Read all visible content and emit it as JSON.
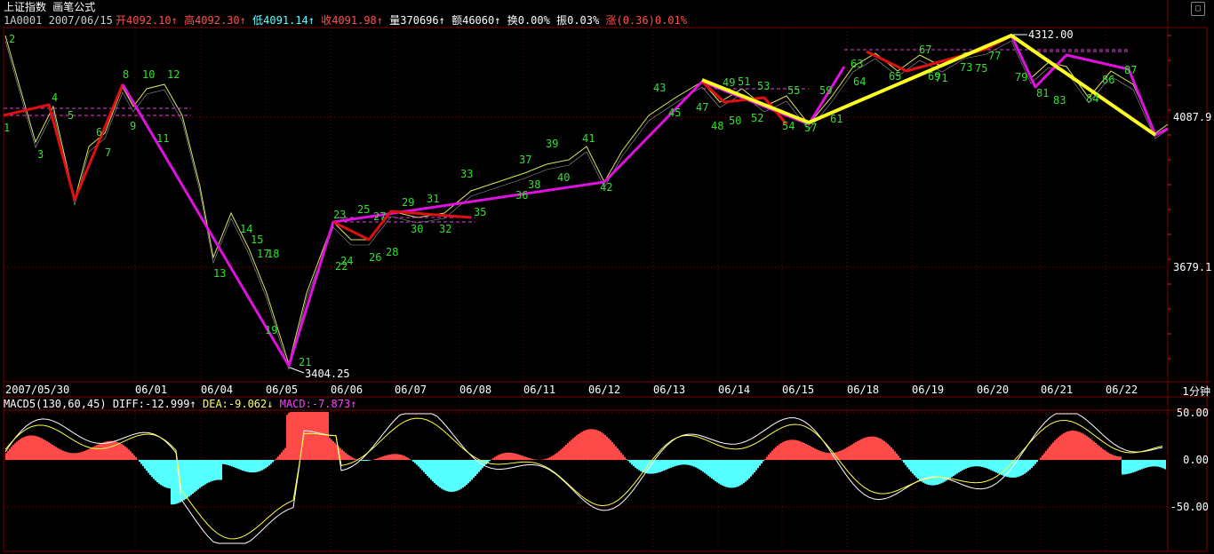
{
  "header": {
    "title": "上证指数  画笔公式",
    "symbol": "1A0001",
    "date": "2007/06/15",
    "open_label": "开",
    "open_value": "4092.10",
    "high_label": "高",
    "high_value": "4092.30",
    "low_label": "低",
    "low_value": "4091.14",
    "close_label": "收",
    "close_value": "4091.98",
    "volume_label": "量",
    "volume_value": "370696",
    "amount_label": "额",
    "amount_value": "46060",
    "turnover_label": "换",
    "turnover_value": "0.00%",
    "amplitude_label": "振",
    "amplitude_value": "0.03%",
    "change_label": "涨",
    "change_value": "(0.36)0.01%"
  },
  "price_axis": {
    "labels": [
      "4087.9",
      "3679.1"
    ]
  },
  "price_annotations": {
    "high": "4312.00",
    "low": "3404.25"
  },
  "time_axis": {
    "labels": [
      "2007/05/30",
      "06/01",
      "06/04",
      "06/05",
      "06/06",
      "06/07",
      "06/08",
      "06/11",
      "06/12",
      "06/13",
      "06/14",
      "06/15",
      "06/18",
      "06/19",
      "06/20",
      "06/21",
      "06/22"
    ],
    "period": "1分钟"
  },
  "macd": {
    "name": "MACD5(130,60,45)",
    "diff_label": "DIFF:",
    "diff_value": "-12.999",
    "dea_label": "DEA:",
    "dea_value": "-9.062",
    "macd_label": "MACD:",
    "macd_value": "-7.873",
    "axis_labels": [
      "50.00",
      "0.00",
      "-50.00"
    ]
  },
  "stroke_labels": [
    "1",
    "2",
    "3",
    "4",
    "5",
    "6",
    "7",
    "8",
    "9",
    "10",
    "11",
    "12",
    "13",
    "14",
    "15",
    "17",
    "18",
    "19",
    "21",
    "22",
    "23",
    "24",
    "25",
    "26",
    "27",
    "28",
    "29",
    "30",
    "31",
    "32",
    "33",
    "35",
    "36",
    "37",
    "38",
    "39",
    "40",
    "41",
    "42",
    "43",
    "45",
    "47",
    "48",
    "49",
    "50",
    "51",
    "52",
    "53",
    "54",
    "55",
    "57",
    "59",
    "61",
    "63",
    "64",
    "65",
    "67",
    "69",
    "71",
    "73",
    "75",
    "77",
    "79",
    "81",
    "83",
    "84",
    "86",
    "87"
  ],
  "colors": {
    "background": "#000000",
    "grid": "#7a0000",
    "up": "#ff4a4a",
    "down": "#55ffff",
    "price": "#d8e85a",
    "bi_red": "#e01010",
    "bi_magenta": "#e010e0",
    "bi_yellow": "#ffff20",
    "stroke_label": "#30e030"
  }
}
